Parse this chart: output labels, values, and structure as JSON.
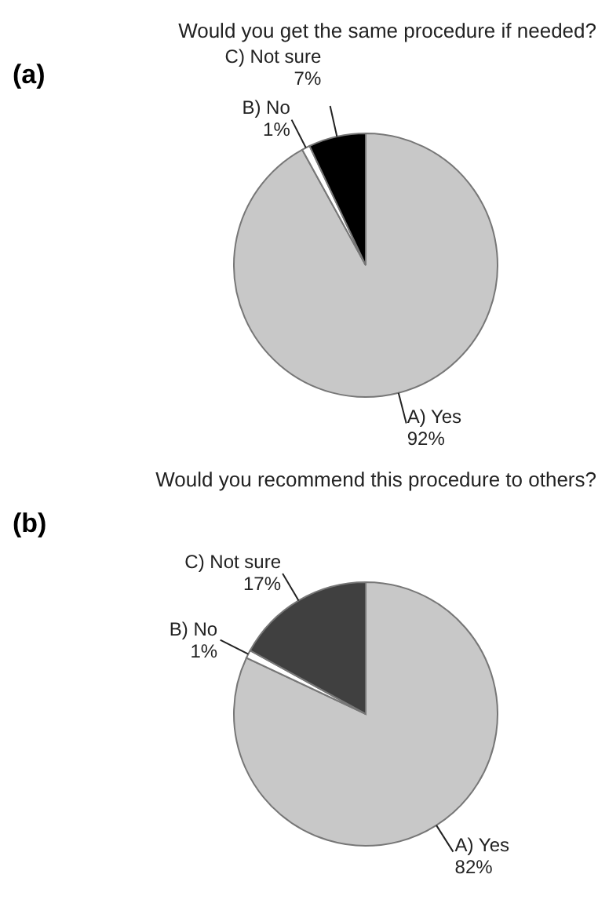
{
  "chart_data": [
    {
      "type": "pie",
      "title": "Would you get the same procedure if needed?",
      "annotations": [
        "(a)"
      ],
      "categories": [
        "A) Yes",
        "B) No",
        "C) Not sure"
      ],
      "values": [
        92,
        1,
        7
      ],
      "colors": [
        "#c8c8c8",
        "#ffffff",
        "#000000"
      ],
      "value_labels": [
        "92%",
        "1%",
        "7%"
      ]
    },
    {
      "type": "pie",
      "title": "Would you recommend this procedure to others?",
      "annotations": [
        "(b)"
      ],
      "categories": [
        "A) Yes",
        "B) No",
        "C) Not sure"
      ],
      "values": [
        82,
        1,
        17
      ],
      "colors": [
        "#c8c8c8",
        "#ffffff",
        "#404040"
      ],
      "value_labels": [
        "82%",
        "1%",
        "17%"
      ]
    }
  ]
}
